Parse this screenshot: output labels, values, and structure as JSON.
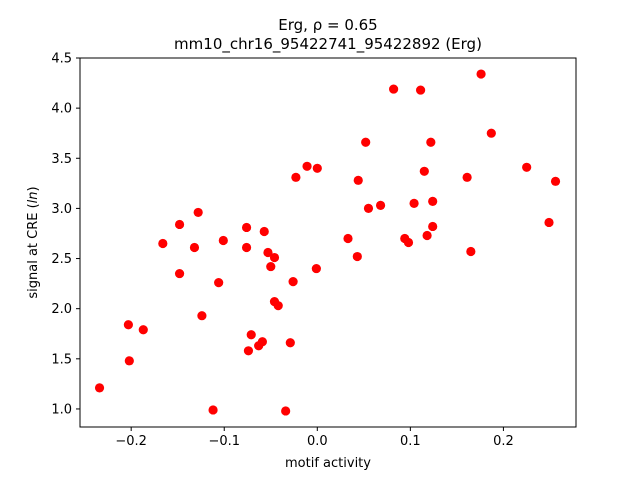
{
  "chart_data": {
    "type": "scatter",
    "title_line1": "Erg, ρ = 0.65",
    "title_line2": "mm10_chr16_95422741_95422892 (Erg)",
    "xlabel": "motif activity",
    "ylabel": "signal at CRE (ln)",
    "xlim": [
      -0.255,
      0.278
    ],
    "ylim": [
      0.82,
      4.5
    ],
    "xticks": [
      -0.2,
      -0.1,
      0.0,
      0.1,
      0.2
    ],
    "xtick_labels": [
      "−0.2",
      "−0.1",
      "0.0",
      "0.1",
      "0.2"
    ],
    "yticks": [
      1.0,
      1.5,
      2.0,
      2.5,
      3.0,
      3.5,
      4.0,
      4.5
    ],
    "ytick_labels": [
      "1.0",
      "1.5",
      "2.0",
      "2.5",
      "3.0",
      "3.5",
      "4.0",
      "4.5"
    ],
    "grid": false,
    "marker_color": "#ff0000",
    "points": [
      {
        "x": -0.234,
        "y": 1.21
      },
      {
        "x": -0.203,
        "y": 1.84
      },
      {
        "x": -0.202,
        "y": 1.48
      },
      {
        "x": -0.187,
        "y": 1.79
      },
      {
        "x": -0.166,
        "y": 2.65
      },
      {
        "x": -0.148,
        "y": 2.84
      },
      {
        "x": -0.148,
        "y": 2.35
      },
      {
        "x": -0.132,
        "y": 2.61
      },
      {
        "x": -0.128,
        "y": 2.96
      },
      {
        "x": -0.124,
        "y": 1.93
      },
      {
        "x": -0.112,
        "y": 0.99
      },
      {
        "x": -0.106,
        "y": 2.26
      },
      {
        "x": -0.101,
        "y": 2.68
      },
      {
        "x": -0.076,
        "y": 2.81
      },
      {
        "x": -0.076,
        "y": 2.61
      },
      {
        "x": -0.074,
        "y": 1.58
      },
      {
        "x": -0.071,
        "y": 1.74
      },
      {
        "x": -0.063,
        "y": 1.63
      },
      {
        "x": -0.059,
        "y": 1.67
      },
      {
        "x": -0.057,
        "y": 2.77
      },
      {
        "x": -0.053,
        "y": 2.56
      },
      {
        "x": -0.05,
        "y": 2.42
      },
      {
        "x": -0.046,
        "y": 2.51
      },
      {
        "x": -0.046,
        "y": 2.07
      },
      {
        "x": -0.042,
        "y": 2.03
      },
      {
        "x": -0.034,
        "y": 0.98
      },
      {
        "x": -0.029,
        "y": 1.66
      },
      {
        "x": -0.026,
        "y": 2.27
      },
      {
        "x": -0.023,
        "y": 3.31
      },
      {
        "x": -0.011,
        "y": 3.42
      },
      {
        "x": 0.0,
        "y": 3.4
      },
      {
        "x": -0.001,
        "y": 2.4
      },
      {
        "x": 0.033,
        "y": 2.7
      },
      {
        "x": 0.043,
        "y": 2.52
      },
      {
        "x": 0.044,
        "y": 3.28
      },
      {
        "x": 0.052,
        "y": 3.66
      },
      {
        "x": 0.055,
        "y": 3.0
      },
      {
        "x": 0.068,
        "y": 3.03
      },
      {
        "x": 0.082,
        "y": 4.19
      },
      {
        "x": 0.094,
        "y": 2.7
      },
      {
        "x": 0.098,
        "y": 2.66
      },
      {
        "x": 0.104,
        "y": 3.05
      },
      {
        "x": 0.111,
        "y": 4.18
      },
      {
        "x": 0.115,
        "y": 3.37
      },
      {
        "x": 0.118,
        "y": 2.73
      },
      {
        "x": 0.122,
        "y": 3.66
      },
      {
        "x": 0.124,
        "y": 2.82
      },
      {
        "x": 0.124,
        "y": 3.07
      },
      {
        "x": 0.161,
        "y": 3.31
      },
      {
        "x": 0.165,
        "y": 2.57
      },
      {
        "x": 0.176,
        "y": 4.34
      },
      {
        "x": 0.187,
        "y": 3.75
      },
      {
        "x": 0.225,
        "y": 3.41
      },
      {
        "x": 0.249,
        "y": 2.86
      },
      {
        "x": 0.256,
        "y": 3.27
      }
    ]
  }
}
